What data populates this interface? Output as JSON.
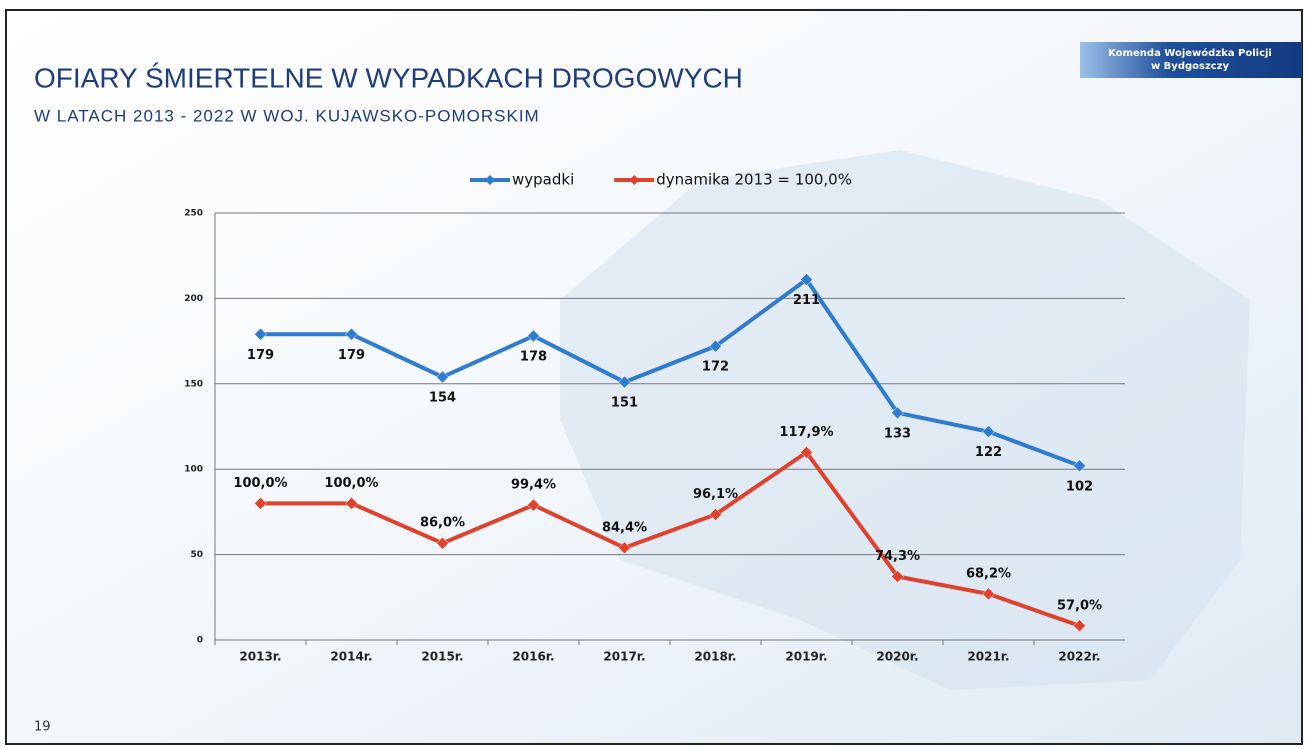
{
  "chart_data": {
    "type": "line",
    "title": "OFIARY ŚMIERTELNE W WYPADKACH DROGOWYCH",
    "subtitle": "W LATACH 2013 - 2022 W WOJ. KUJAWSKO-POMORSKIM",
    "categories": [
      "2013r.",
      "2014r.",
      "2015r.",
      "2016r.",
      "2017r.",
      "2018r.",
      "2019r.",
      "2020r.",
      "2021r.",
      "2022r."
    ],
    "series": [
      {
        "name": "wypadki",
        "color": "#2e7bcf",
        "values": [
          179,
          179,
          154,
          178,
          151,
          172,
          211,
          133,
          122,
          102
        ]
      },
      {
        "name": "dynamika 2013 = 100,0%",
        "color": "#e0412c",
        "axis": "y2",
        "values": [
          100,
          100,
          86,
          99.4,
          84.4,
          96.1,
          117.9,
          74.3,
          68.2,
          57
        ],
        "value_labels": [
          "100,0%",
          "100,0%",
          "86,0%",
          "99,4%",
          "84,4%",
          "96,1%",
          "117,9%",
          "74,3%",
          "68,2%",
          "57,0%"
        ]
      }
    ],
    "ylim": [
      0,
      250
    ],
    "yticks": [
      0,
      50,
      100,
      150,
      200,
      250
    ],
    "y2lim": [
      52,
      202
    ],
    "grid": true,
    "legend": "top"
  },
  "logo": [
    "Komenda Wojewódzka Policji",
    "w Bydgoszczy"
  ],
  "page_number": "19"
}
